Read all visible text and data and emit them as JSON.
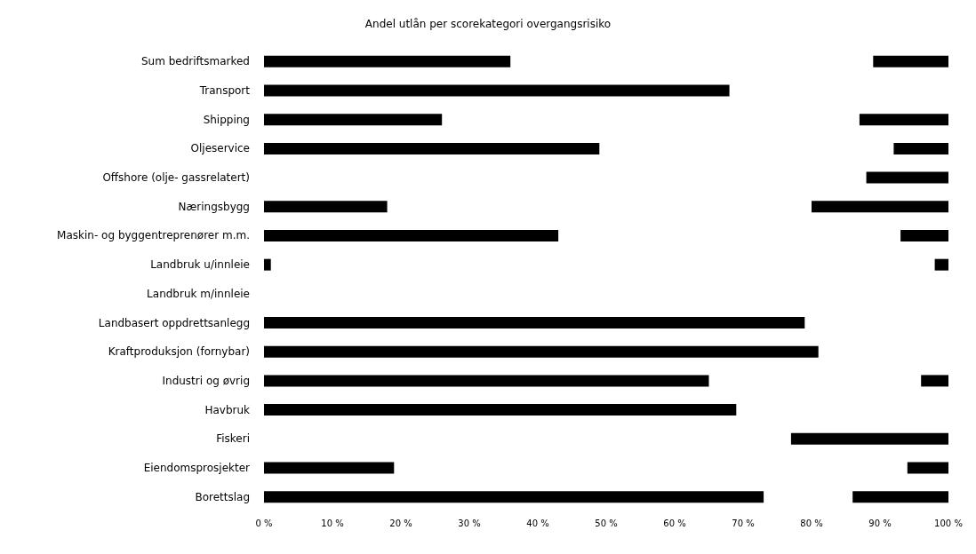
{
  "chart_data": {
    "type": "bar",
    "orientation": "horizontal",
    "title": "Andel utlån per scorekategori overgangsrisiko",
    "categories": [
      "Sum bedriftsmarked",
      "Transport",
      "Shipping",
      "Oljeservice",
      "Offshore (olje- gassrelatert)",
      "Næringsbygg",
      "Maskin- og byggentreprenører m.m.",
      "Landbruk u/innleie",
      "Landbruk m/innleie",
      "Landbasert oppdrettsanlegg",
      "Kraftproduksjon (fornybar)",
      "Industri og øvrig",
      "Havbruk",
      "Fiskeri",
      "Eiendomsprosjekter",
      "Borettslag"
    ],
    "series": [
      {
        "color": "#000000",
        "base": [
          0,
          0,
          0,
          0,
          null,
          0,
          0,
          0,
          null,
          0,
          0,
          0,
          0,
          null,
          0,
          0
        ],
        "values": [
          36,
          68,
          26,
          49,
          null,
          18,
          43,
          1,
          null,
          79,
          81,
          65,
          69,
          null,
          19,
          73
        ]
      },
      {
        "color": "#000000",
        "base": [
          89,
          null,
          87,
          92,
          88,
          80,
          93,
          98,
          null,
          null,
          null,
          96,
          null,
          77,
          94,
          86
        ],
        "values": [
          11,
          null,
          13,
          8,
          12,
          20,
          7,
          2,
          null,
          null,
          null,
          4,
          null,
          23,
          6,
          14
        ]
      }
    ],
    "xlim": [
      0,
      100
    ],
    "xticks": [
      {
        "value": 0,
        "label": "0 %"
      },
      {
        "value": 10,
        "label": "10 %"
      },
      {
        "value": 20,
        "label": "20 %"
      },
      {
        "value": 30,
        "label": "30 %"
      },
      {
        "value": 40,
        "label": "40 %"
      },
      {
        "value": 50,
        "label": "50 %"
      },
      {
        "value": 60,
        "label": "60 %"
      },
      {
        "value": 70,
        "label": "70 %"
      },
      {
        "value": 80,
        "label": "80 %"
      },
      {
        "value": 90,
        "label": "90 %"
      },
      {
        "value": 100,
        "label": "100 %"
      }
    ],
    "grid": false
  }
}
